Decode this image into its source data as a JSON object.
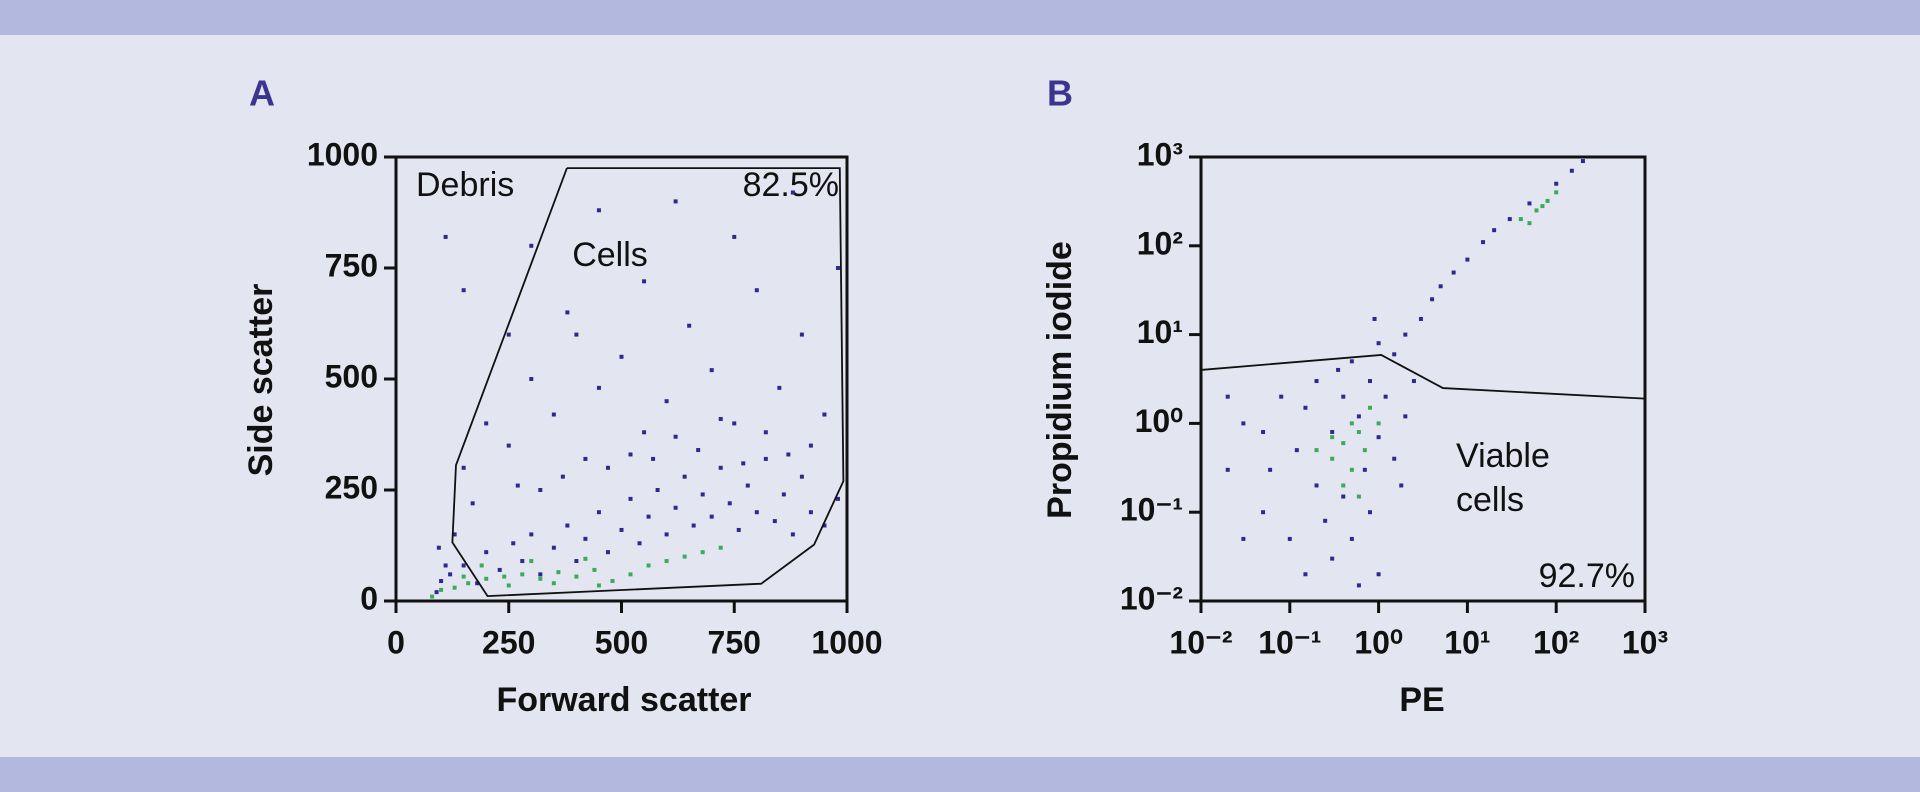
{
  "chart_data": [
    {
      "type": "scatter",
      "panel": "A",
      "xlabel": "Forward scatter",
      "ylabel": "Side scatter",
      "xlim": [
        0,
        1000
      ],
      "ylim": [
        0,
        1000
      ],
      "xticks": [
        0,
        250,
        500,
        750,
        1000
      ],
      "yticks": [
        0,
        250,
        500,
        750,
        1000
      ],
      "annotations": [
        "Debris",
        "82.5%",
        "Cells"
      ],
      "gate": {
        "color": "#111111",
        "x": [
          379,
          984,
          992,
          927,
          810,
          203,
          125,
          133,
          379
        ],
        "y": [
          975,
          975,
          270,
          127,
          39,
          11,
          132,
          306,
          975
        ]
      },
      "series": [
        {
          "color": "#2d2a8e",
          "x": [
            90,
            100,
            120,
            150,
            180,
            200,
            230,
            260,
            280,
            300,
            320,
            350,
            380,
            400,
            420,
            450,
            470,
            500,
            520,
            540,
            560,
            580,
            600,
            620,
            640,
            660,
            680,
            700,
            720,
            740,
            760,
            780,
            800,
            820,
            840,
            860,
            880,
            900,
            920,
            950,
            980,
            150,
            200,
            250,
            300,
            350,
            400,
            450,
            500,
            550,
            600,
            650,
            700,
            750,
            800,
            850,
            900,
            950,
            980,
            320,
            420,
            520,
            620,
            720,
            820,
            920,
            170,
            270,
            370,
            470,
            570,
            670,
            770,
            870,
            130,
            110,
            95,
            300,
            450,
            620,
            750,
            880,
            550,
            380,
            250,
            110,
            150
          ],
          "y": [
            20,
            45,
            60,
            80,
            40,
            110,
            70,
            130,
            90,
            150,
            60,
            120,
            170,
            90,
            140,
            200,
            110,
            160,
            230,
            130,
            190,
            250,
            150,
            210,
            280,
            170,
            240,
            190,
            300,
            220,
            160,
            260,
            200,
            320,
            180,
            240,
            150,
            280,
            200,
            170,
            230,
            300,
            400,
            350,
            500,
            420,
            600,
            480,
            550,
            380,
            450,
            620,
            520,
            400,
            700,
            480,
            600,
            420,
            750,
            250,
            320,
            330,
            370,
            410,
            380,
            350,
            220,
            260,
            280,
            300,
            320,
            340,
            310,
            330,
            150,
            80,
            120,
            800,
            880,
            900,
            820,
            920,
            720,
            650,
            600,
            820,
            700
          ]
        },
        {
          "color": "#3caa5c",
          "x": [
            80,
            100,
            130,
            160,
            200,
            240,
            280,
            320,
            360,
            400,
            440,
            480,
            520,
            560,
            600,
            640,
            680,
            720,
            150,
            250,
            350,
            450,
            190,
            300,
            420
          ],
          "y": [
            10,
            25,
            30,
            40,
            50,
            55,
            60,
            50,
            65,
            55,
            70,
            45,
            60,
            80,
            90,
            100,
            110,
            120,
            55,
            35,
            40,
            35,
            80,
            90,
            95
          ]
        }
      ]
    },
    {
      "type": "scatter",
      "panel": "B",
      "xlabel": "PE",
      "ylabel": "Propidium iodide",
      "xscale": "log",
      "yscale": "log",
      "xlim": [
        0.01,
        1000
      ],
      "ylim": [
        0.01,
        1000
      ],
      "xticks": [
        {
          "value": 0.01,
          "label": "10⁻²"
        },
        {
          "value": 0.1,
          "label": "10⁻¹"
        },
        {
          "value": 1,
          "label": "10⁰"
        },
        {
          "value": 10,
          "label": "10¹"
        },
        {
          "value": 100,
          "label": "10²"
        },
        {
          "value": 1000,
          "label": "10³"
        }
      ],
      "yticks": [
        {
          "value": 0.01,
          "label": "10⁻²"
        },
        {
          "value": 0.1,
          "label": "10⁻¹"
        },
        {
          "value": 1,
          "label": "10⁰"
        },
        {
          "value": 10,
          "label": "10¹"
        },
        {
          "value": 100,
          "label": "10²"
        },
        {
          "value": 1000,
          "label": "10³"
        }
      ],
      "annotations": [
        "Viable",
        "cells",
        "92.7%"
      ],
      "gate": {
        "color": "#111111",
        "x": [
          0.01,
          1.07,
          5.3,
          1000
        ],
        "y": [
          4.0,
          5.9,
          2.5,
          1.9
        ]
      },
      "series": [
        {
          "color": "#2d2a8e",
          "x": [
            0.02,
            0.03,
            0.05,
            0.08,
            0.1,
            0.12,
            0.15,
            0.2,
            0.2,
            0.25,
            0.3,
            0.3,
            0.4,
            0.4,
            0.5,
            0.5,
            0.6,
            0.7,
            0.8,
            0.8,
            1,
            1,
            1.2,
            1.5,
            1.5,
            2,
            2,
            3,
            4,
            5,
            7,
            10,
            15,
            20,
            30,
            50,
            100,
            150,
            200,
            0.05,
            0.02,
            0.03,
            0.15,
            0.6,
            1.8,
            2.5,
            1,
            0.35,
            0.06,
            0.9
          ],
          "y": [
            0.3,
            1,
            0.1,
            2,
            0.05,
            0.5,
            1.5,
            0.2,
            3,
            0.08,
            0.8,
            0.03,
            2,
            0.15,
            5,
            0.05,
            1.2,
            0.3,
            3,
            0.1,
            0.7,
            0.02,
            2,
            6,
            0.4,
            10,
            1.2,
            15,
            25,
            35,
            50,
            70,
            110,
            150,
            200,
            300,
            500,
            700,
            900,
            0.8,
            2,
            0.05,
            0.02,
            0.015,
            0.2,
            3,
            8,
            4,
            0.3,
            15
          ]
        },
        {
          "color": "#3caa5c",
          "x": [
            0.3,
            0.4,
            0.5,
            0.6,
            0.5,
            0.4,
            0.7,
            0.8,
            0.3,
            0.6,
            1,
            0.2,
            40,
            60,
            80,
            50,
            70,
            100
          ],
          "y": [
            0.4,
            0.6,
            0.3,
            0.8,
            1,
            0.2,
            0.5,
            1.5,
            0.7,
            0.15,
            1,
            0.5,
            200,
            250,
            320,
            180,
            280,
            400
          ]
        }
      ]
    }
  ]
}
